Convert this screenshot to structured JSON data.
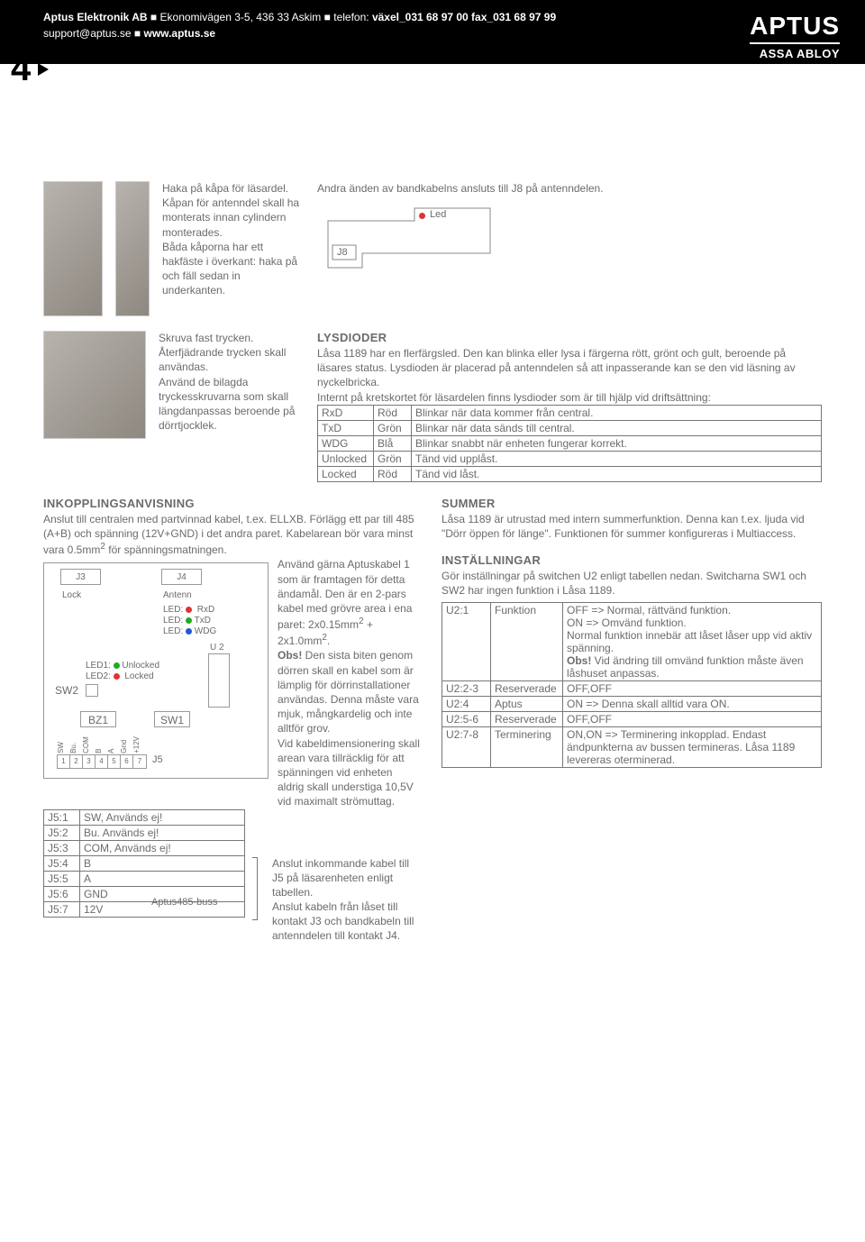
{
  "header": {
    "company": "Aptus Elektronik AB",
    "address": "Ekonomivägen 3-5, 436 33 Askim",
    "phone_label": "telefon:",
    "phone": "växel_031 68 97 00 fax_031 68 97 99",
    "support": "support@aptus.se",
    "web": "www.aptus.se",
    "logo": "APTUS",
    "logo_sub": "ASSA ABLOY",
    "page_number": "4"
  },
  "block1": {
    "p1": "Haka på kåpa för läsardel.",
    "p2": "Kåpan för antenndel skall ha monterats innan cylindern monterades.",
    "p3": "Båda kåporna har ett hakfäste i överkant: haka på och fäll sedan in underkanten."
  },
  "block2": {
    "intro": "Andra änden av bandkabelns ansluts till J8 på antenndelen.",
    "j8_label": "J8",
    "led_label": "Led"
  },
  "block3": {
    "p1": "Skruva fast trycken. Återfjädrande trycken skall användas.",
    "p2": "Använd de bilagda tryckesskruvarna som skall längdanpassas beroende på dörrtjocklek."
  },
  "lysdioder": {
    "title": "LYSDIODER",
    "intro": "Låsa 1189 har en flerfärgsled. Den kan blinka eller lysa i färgerna rött, grönt och gult, beroende på läsares status. Lysdioden är placerad på antenndelen så att inpasserande kan se den vid läsning av nyckelbricka.",
    "intro2": "Internt på kretskortet för läsardelen finns lysdioder som är till hjälp vid driftsättning:",
    "table": [
      [
        "RxD",
        "Röd",
        "Blinkar när data kommer från central."
      ],
      [
        "TxD",
        "Grön",
        "Blinkar när data sänds till central."
      ],
      [
        "WDG",
        "Blå",
        "Blinkar snabbt när enheten fungerar korrekt."
      ],
      [
        "Unlocked",
        "Grön",
        "Tänd vid upplåst."
      ],
      [
        "Locked",
        "Röd",
        "Tänd vid låst."
      ]
    ]
  },
  "inkoppling": {
    "title": "INKOPPLINGSANVISNING",
    "intro": "Anslut till centralen med partvinnad kabel, t.ex. ELLXB. Förlägg ett par till 485 (A+B) och spänning (12V+GND) i det andra paret. Kabelarean bör vara minst vara 0.5mm",
    "intro_sup": "2",
    "intro_cont": " för spänningsmatningen.",
    "right_p1": "Använd gärna Aptuskabel 1 som är framtagen för detta ändamål. Den är en 2-pars kabel med grövre area i ena paret: 2x0.15mm",
    "right_sup1": "2",
    "right_mid": " + 2x1.0mm",
    "right_sup2": "2",
    "right_end": ".",
    "obs_label": "Obs!",
    "obs_text": " Den sista biten genom dörren skall en kabel som är lämplig för dörrinstallationer användas. Denna måste vara mjuk, mångkardelig och inte alltför grov.",
    "dim": "Vid kabeldimensionering skall arean vara tillräcklig för att spänningen vid enheten aldrig skall understiga 10,5V vid maximalt strömuttag.",
    "j5_instr1": "Anslut inkommande kabel till J5 på läsarenheten enligt tabellen.",
    "j5_instr2": "Anslut kabeln från låset till kontakt J3 och bandkabeln till antenndelen till kontakt J4.",
    "j5_table": [
      [
        "J5:1",
        "SW, Används ej!"
      ],
      [
        "J5:2",
        "Bu. Används ej!"
      ],
      [
        "J5:3",
        "COM, Används ej!"
      ],
      [
        "J5:4",
        "B"
      ],
      [
        "J5:5",
        "A"
      ],
      [
        "J5:6",
        "GND"
      ],
      [
        "J5:7",
        "12V"
      ]
    ],
    "bus_label": "Aptus485-buss"
  },
  "pcb": {
    "j3": "J3",
    "j4": "J4",
    "j5": "J5",
    "lock": "Lock",
    "antenn": "Antenn",
    "led_rxd": "RxD",
    "led_txd": "TxD",
    "led_wdg": "WDG",
    "led_pref": "LED:",
    "led1": "LED1:",
    "led2": "LED2:",
    "unlocked": "Unlocked",
    "locked": "Locked",
    "sw2": "SW2",
    "bz1": "BZ1",
    "sw1": "SW1",
    "u2": "U 2",
    "pins": [
      "SW",
      "Bu.",
      "COM",
      "B",
      "A",
      "Gnd",
      "+12V"
    ],
    "nums": [
      "1",
      "2",
      "3",
      "4",
      "5",
      "6",
      "7"
    ]
  },
  "summer": {
    "title": "SUMMER",
    "text": "Låsa 1189 är utrustad med intern summerfunktion. Denna kan t.ex. ljuda vid \"Dörr öppen för länge\". Funktionen för summer konfigureras i Multiaccess."
  },
  "installningar": {
    "title": "INSTÄLLNINGAR",
    "intro": "Gör inställningar på switchen U2 enligt tabellen nedan. Switcharna SW1 och SW2 har ingen funktion i Låsa 1189.",
    "table": [
      {
        "c1": "U2:1",
        "c2": "Funktion",
        "c3": "OFF => Normal, rättvänd funktion.\nON  => Omvänd funktion.\nNormal funktion innebär att låset låser upp vid aktiv spänning.\nObs! Vid ändring till omvänd funktion måste även låshuset anpassas."
      },
      {
        "c1": "U2:2-3",
        "c2": "Reserverade",
        "c3": "OFF,OFF"
      },
      {
        "c1": "U2:4",
        "c2": "Aptus",
        "c3": "ON => Denna skall alltid vara ON."
      },
      {
        "c1": "U2:5-6",
        "c2": "Reserverade",
        "c3": "OFF,OFF"
      },
      {
        "c1": "U2:7-8",
        "c2": "Terminering",
        "c3": "ON,ON => Terminering inkopplad. Endast ändpunkterna av bussen termineras. Låsa 1189 levereras oterminerad."
      }
    ],
    "obs_marker": "Obs!"
  }
}
